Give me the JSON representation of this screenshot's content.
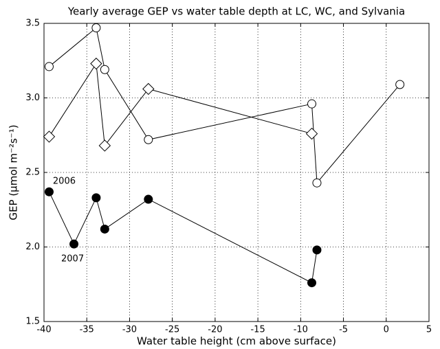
{
  "chart_data": {
    "type": "line",
    "title": "Yearly average GEP vs water table depth at LC, WC, and Sylvania",
    "x_label": "Water table height (cm above surface)",
    "y_label": "GEP (μmol m⁻²s⁻¹)",
    "series": [
      {
        "marker": "circle",
        "color": "#000000",
        "fill": "#ffffff",
        "x": [
          -39.4,
          -33.9,
          -32.9,
          -27.8,
          -8.7,
          -8.1,
          1.6
        ],
        "values": [
          3.21,
          3.47,
          3.19,
          2.72,
          2.96,
          2.43,
          3.09
        ]
      },
      {
        "marker": "diamond",
        "color": "#000000",
        "fill": "#ffffff",
        "x": [
          -39.4,
          -33.9,
          -32.9,
          -27.8,
          -8.7
        ],
        "values": [
          2.74,
          3.23,
          2.68,
          3.06,
          2.76
        ]
      },
      {
        "marker": "circle",
        "color": "#000000",
        "fill": "#000000",
        "x": [
          -39.4,
          -36.5,
          -33.9,
          -32.9,
          -27.8,
          -8.7,
          -8.1
        ],
        "values": [
          2.37,
          2.02,
          2.33,
          2.12,
          2.32,
          1.76,
          1.98
        ]
      }
    ],
    "annotations": [
      "2006",
      "2007"
    ],
    "xlim": [
      -40,
      5
    ],
    "xticks": [
      -40,
      -35,
      -30,
      -25,
      -20,
      -15,
      -10,
      -5,
      0,
      5
    ],
    "ylim": [
      1.5,
      3.5
    ],
    "yticks": [
      1.5,
      {
        "value": 2,
        "label": "2.0"
      },
      2.5,
      {
        "value": 3,
        "label": "3.0"
      },
      3.5
    ],
    "grid": true
  }
}
